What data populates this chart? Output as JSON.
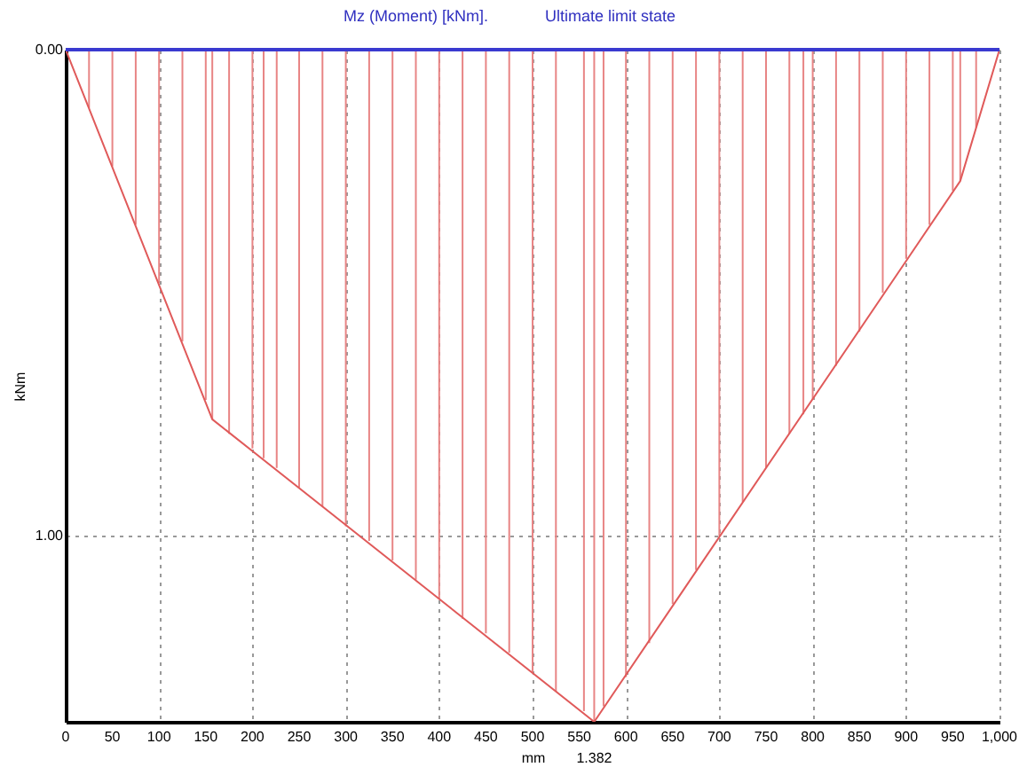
{
  "chart_data": {
    "type": "line",
    "title": "Mz (Moment) [kNm].",
    "subtitle": "Ultimate limit state",
    "xlabel": "mm",
    "ylabel": "kNm",
    "xlim": [
      0,
      1000
    ],
    "ylim": [
      1.382,
      0
    ],
    "xticks": [
      0,
      50,
      100,
      150,
      200,
      250,
      300,
      350,
      400,
      450,
      500,
      550,
      600,
      650,
      700,
      750,
      800,
      850,
      900,
      950,
      {
        "value": 1000,
        "label": "1,000"
      }
    ],
    "yticks": [
      {
        "value": 0,
        "label": "0.00"
      },
      {
        "value": 1,
        "label": "1.00"
      }
    ],
    "grid": true,
    "legend": false,
    "marker": "none",
    "line_style": "solid",
    "series": [
      {
        "color": "#e05a5a",
        "x": [
          0,
          157,
          566,
          958,
          1000
        ],
        "values": [
          0,
          0.76,
          1.382,
          0.27,
          0
        ]
      },
      {
        "type": "bar",
        "color": "#e88585",
        "x": [
          25,
          50,
          75,
          100,
          125,
          150,
          157,
          175,
          200,
          212,
          226,
          250,
          275,
          300,
          325,
          350,
          375,
          400,
          425,
          450,
          475,
          500,
          525,
          555,
          566,
          576,
          600,
          625,
          650,
          675,
          700,
          725,
          750,
          775,
          790,
          800,
          825,
          850,
          875,
          900,
          925,
          950,
          958,
          975
        ],
        "values": [
          0.12,
          0.24,
          0.36,
          0.48,
          0.6,
          0.72,
          0.76,
          0.79,
          0.82,
          0.84,
          0.86,
          0.9,
          0.94,
          0.98,
          1.01,
          1.05,
          1.09,
          1.13,
          1.17,
          1.2,
          1.24,
          1.28,
          1.32,
          1.36,
          1.382,
          1.35,
          1.29,
          1.22,
          1.14,
          1.07,
          1,
          0.93,
          0.86,
          0.79,
          0.75,
          0.72,
          0.65,
          0.58,
          0.5,
          0.43,
          0.36,
          0.29,
          0.27,
          0.16
        ]
      }
    ],
    "ref_lines": [
      {
        "axis": "y",
        "value": 0,
        "color": "#3a3ad0"
      }
    ],
    "annotations": [
      {
        "text": "1.382",
        "x": 566,
        "y": 1.382
      }
    ]
  }
}
